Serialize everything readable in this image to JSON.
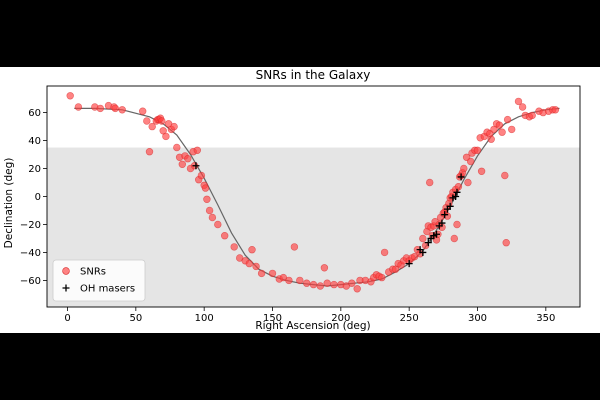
{
  "chart_data": {
    "type": "scatter",
    "title": "SNRs in the Galaxy",
    "xlabel": "Right Ascension (deg)",
    "ylabel": "Declination (deg)",
    "xlim": [
      -15,
      375
    ],
    "ylim": [
      -79,
      79
    ],
    "xticks": [
      0,
      50,
      100,
      150,
      200,
      250,
      300,
      350
    ],
    "yticks": [
      -60,
      -40,
      -20,
      0,
      20,
      40,
      60
    ],
    "shaded_region": {
      "y_from": -79,
      "y_to": 35,
      "color": "#e5e5e5"
    },
    "curve_color": "#666666",
    "curve": {
      "x": [
        5,
        20,
        40,
        60,
        70,
        80,
        90,
        100,
        110,
        120,
        130,
        140,
        150,
        160,
        170,
        180,
        190,
        200,
        210,
        220,
        230,
        240,
        250,
        260,
        270,
        280,
        290,
        300,
        310,
        320,
        330,
        340,
        350,
        360
      ],
      "y": [
        63,
        63,
        62,
        57,
        52,
        44,
        30,
        13,
        -6,
        -26,
        -42,
        -52,
        -57,
        -60,
        -62,
        -63,
        -64,
        -63,
        -62,
        -61,
        -59,
        -54,
        -48,
        -39,
        -24,
        -7,
        12,
        29,
        43,
        52,
        57,
        60,
        62,
        63
      ]
    },
    "series": [
      {
        "name": "SNRs",
        "marker": "circle",
        "color": "#ff4040",
        "edge": "#d62728",
        "points": [
          [
            2,
            72
          ],
          [
            8,
            64
          ],
          [
            20,
            64
          ],
          [
            24,
            63
          ],
          [
            30,
            65
          ],
          [
            34,
            64
          ],
          [
            35,
            63
          ],
          [
            40,
            62
          ],
          [
            55,
            61
          ],
          [
            58,
            54
          ],
          [
            60,
            32
          ],
          [
            62,
            50
          ],
          [
            65,
            54
          ],
          [
            66,
            55
          ],
          [
            67,
            55
          ],
          [
            68,
            56
          ],
          [
            69,
            54
          ],
          [
            70,
            47
          ],
          [
            72,
            43
          ],
          [
            74,
            52
          ],
          [
            76,
            48
          ],
          [
            78,
            50
          ],
          [
            80,
            35
          ],
          [
            82,
            28
          ],
          [
            84,
            23
          ],
          [
            86,
            29
          ],
          [
            88,
            27
          ],
          [
            90,
            20
          ],
          [
            92,
            32
          ],
          [
            93,
            22
          ],
          [
            95,
            33
          ],
          [
            96,
            12
          ],
          [
            98,
            15
          ],
          [
            100,
            8
          ],
          [
            101,
            6
          ],
          [
            102,
            -2
          ],
          [
            104,
            -10
          ],
          [
            106,
            -15
          ],
          [
            110,
            -20
          ],
          [
            115,
            -28
          ],
          [
            122,
            -36
          ],
          [
            126,
            -44
          ],
          [
            130,
            -46
          ],
          [
            133,
            -48
          ],
          [
            135,
            -38
          ],
          [
            138,
            -50
          ],
          [
            142,
            -55
          ],
          [
            150,
            -55
          ],
          [
            155,
            -59
          ],
          [
            158,
            -58
          ],
          [
            162,
            -60
          ],
          [
            166,
            -36
          ],
          [
            170,
            -60
          ],
          [
            175,
            -62
          ],
          [
            180,
            -63
          ],
          [
            185,
            -64
          ],
          [
            188,
            -51
          ],
          [
            190,
            -62
          ],
          [
            195,
            -63
          ],
          [
            200,
            -63
          ],
          [
            204,
            -64
          ],
          [
            208,
            -62
          ],
          [
            212,
            -66
          ],
          [
            214,
            -60
          ],
          [
            218,
            -60
          ],
          [
            222,
            -61
          ],
          [
            224,
            -58
          ],
          [
            226,
            -56
          ],
          [
            228,
            -57
          ],
          [
            230,
            -58
          ],
          [
            232,
            -40
          ],
          [
            235,
            -54
          ],
          [
            238,
            -52
          ],
          [
            240,
            -52
          ],
          [
            242,
            -48
          ],
          [
            244,
            -49
          ],
          [
            246,
            -46
          ],
          [
            248,
            -44
          ],
          [
            250,
            -46
          ],
          [
            252,
            -44
          ],
          [
            254,
            -43
          ],
          [
            256,
            -38
          ],
          [
            258,
            -41
          ],
          [
            260,
            -30
          ],
          [
            262,
            -35
          ],
          [
            263,
            -25
          ],
          [
            264,
            -21
          ],
          [
            265,
            10
          ],
          [
            266,
            -22
          ],
          [
            267,
            -28
          ],
          [
            268,
            -21
          ],
          [
            269,
            -18
          ],
          [
            270,
            -31
          ],
          [
            271,
            -27
          ],
          [
            272,
            -20
          ],
          [
            273,
            -15
          ],
          [
            274,
            -22
          ],
          [
            275,
            -12
          ],
          [
            276,
            -11
          ],
          [
            277,
            -8
          ],
          [
            278,
            -14
          ],
          [
            279,
            -5
          ],
          [
            280,
            -1
          ],
          [
            281,
            0
          ],
          [
            282,
            3
          ],
          [
            283,
            -30
          ],
          [
            284,
            5
          ],
          [
            285,
            -20
          ],
          [
            286,
            7
          ],
          [
            287,
            14
          ],
          [
            288,
            15
          ],
          [
            289,
            17
          ],
          [
            290,
            20
          ],
          [
            292,
            28
          ],
          [
            293,
            10
          ],
          [
            295,
            25
          ],
          [
            296,
            31
          ],
          [
            298,
            33
          ],
          [
            300,
            33
          ],
          [
            302,
            42
          ],
          [
            303,
            18
          ],
          [
            305,
            43
          ],
          [
            307,
            46
          ],
          [
            309,
            45
          ],
          [
            310,
            41
          ],
          [
            312,
            48
          ],
          [
            314,
            52
          ],
          [
            316,
            51
          ],
          [
            318,
            46
          ],
          [
            320,
            15
          ],
          [
            321,
            -33
          ],
          [
            322,
            55
          ],
          [
            325,
            48
          ],
          [
            330,
            68
          ],
          [
            333,
            64
          ],
          [
            335,
            58
          ],
          [
            338,
            57
          ],
          [
            340,
            58
          ],
          [
            345,
            61
          ],
          [
            348,
            60
          ],
          [
            352,
            61
          ],
          [
            355,
            62
          ],
          [
            357,
            62
          ]
        ]
      },
      {
        "name": "OH masers",
        "marker": "plus",
        "color": "#000000",
        "points": [
          [
            94,
            22
          ],
          [
            250,
            -48
          ],
          [
            258,
            -38
          ],
          [
            260,
            -40
          ],
          [
            264,
            -33
          ],
          [
            266,
            -30
          ],
          [
            268,
            -28
          ],
          [
            270,
            -27
          ],
          [
            272,
            -21
          ],
          [
            274,
            -19
          ],
          [
            276,
            -13
          ],
          [
            278,
            -9
          ],
          [
            280,
            -7
          ],
          [
            282,
            -1
          ],
          [
            284,
            0
          ],
          [
            285,
            3
          ],
          [
            288,
            14
          ]
        ]
      }
    ],
    "legend": {
      "position": "lower-left",
      "entries": [
        {
          "label": "SNRs",
          "marker": "circle",
          "color": "#ff4040"
        },
        {
          "label": "OH masers",
          "marker": "plus",
          "color": "#000000"
        }
      ]
    }
  }
}
